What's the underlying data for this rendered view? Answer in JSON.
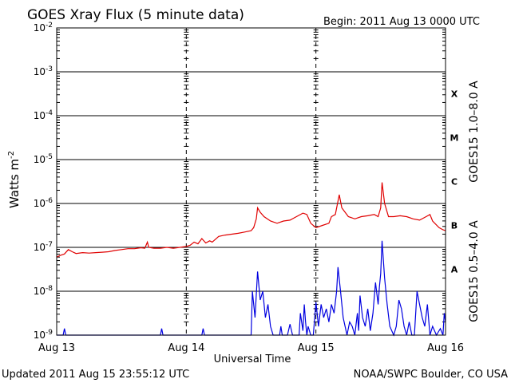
{
  "chart_data": {
    "type": "line",
    "title": "GOES Xray Flux (5 minute data)",
    "begin": "Begin:  2011 Aug 13 0000 UTC",
    "ylabel": "Watts m",
    "ylabel_sup": "-2",
    "xlabel": "Universal Time",
    "yscale": "log",
    "ylim": [
      1e-09,
      0.01
    ],
    "xlim": [
      0,
      3
    ],
    "grid": true,
    "x_ticks": [
      {
        "x": 0,
        "label": "Aug 13"
      },
      {
        "x": 1,
        "label": "Aug 14"
      },
      {
        "x": 2,
        "label": "Aug 15"
      },
      {
        "x": 3,
        "label": "Aug 16"
      }
    ],
    "y_ticks": [
      {
        "exp": -2,
        "base": "10",
        "sup": "-2"
      },
      {
        "exp": -3,
        "base": "10",
        "sup": "-3"
      },
      {
        "exp": -4,
        "base": "10",
        "sup": "-4"
      },
      {
        "exp": -5,
        "base": "10",
        "sup": "-5"
      },
      {
        "exp": -6,
        "base": "10",
        "sup": "-6"
      },
      {
        "exp": -7,
        "base": "10",
        "sup": "-7"
      },
      {
        "exp": -8,
        "base": "10",
        "sup": "-8"
      },
      {
        "exp": -9,
        "base": "10",
        "sup": "-9"
      }
    ],
    "flare_classes": [
      {
        "label": "X",
        "exp": -3.5
      },
      {
        "label": "M",
        "exp": -4.5
      },
      {
        "label": "C",
        "exp": -5.5
      },
      {
        "label": "B",
        "exp": -6.5
      },
      {
        "label": "A",
        "exp": -7.5
      }
    ],
    "series": [
      {
        "name": "GOES15 1.0–8.0 A",
        "color": "#e00000",
        "points": [
          [
            0.0,
            -7.22
          ],
          [
            0.03,
            -7.18
          ],
          [
            0.06,
            -7.15
          ],
          [
            0.09,
            -7.05
          ],
          [
            0.12,
            -7.1
          ],
          [
            0.15,
            -7.14
          ],
          [
            0.2,
            -7.12
          ],
          [
            0.25,
            -7.13
          ],
          [
            0.3,
            -7.12
          ],
          [
            0.35,
            -7.11
          ],
          [
            0.4,
            -7.1
          ],
          [
            0.45,
            -7.07
          ],
          [
            0.5,
            -7.05
          ],
          [
            0.55,
            -7.03
          ],
          [
            0.6,
            -7.03
          ],
          [
            0.65,
            -7.01
          ],
          [
            0.68,
            -7.02
          ],
          [
            0.7,
            -6.88
          ],
          [
            0.71,
            -7.0
          ],
          [
            0.75,
            -7.02
          ],
          [
            0.8,
            -7.02
          ],
          [
            0.85,
            -7.0
          ],
          [
            0.9,
            -7.02
          ],
          [
            0.95,
            -7.0
          ],
          [
            1.0,
            -6.98
          ],
          [
            1.03,
            -6.95
          ],
          [
            1.06,
            -6.88
          ],
          [
            1.09,
            -6.92
          ],
          [
            1.12,
            -6.8
          ],
          [
            1.15,
            -6.9
          ],
          [
            1.18,
            -6.85
          ],
          [
            1.2,
            -6.88
          ],
          [
            1.25,
            -6.75
          ],
          [
            1.3,
            -6.72
          ],
          [
            1.35,
            -6.7
          ],
          [
            1.4,
            -6.68
          ],
          [
            1.45,
            -6.65
          ],
          [
            1.5,
            -6.62
          ],
          [
            1.52,
            -6.55
          ],
          [
            1.54,
            -6.35
          ],
          [
            1.55,
            -6.1
          ],
          [
            1.57,
            -6.2
          ],
          [
            1.6,
            -6.3
          ],
          [
            1.65,
            -6.4
          ],
          [
            1.7,
            -6.45
          ],
          [
            1.75,
            -6.4
          ],
          [
            1.8,
            -6.38
          ],
          [
            1.85,
            -6.3
          ],
          [
            1.9,
            -6.22
          ],
          [
            1.93,
            -6.25
          ],
          [
            1.96,
            -6.45
          ],
          [
            2.0,
            -6.55
          ],
          [
            2.05,
            -6.5
          ],
          [
            2.1,
            -6.45
          ],
          [
            2.12,
            -6.3
          ],
          [
            2.15,
            -6.25
          ],
          [
            2.18,
            -5.8
          ],
          [
            2.2,
            -6.1
          ],
          [
            2.25,
            -6.3
          ],
          [
            2.3,
            -6.35
          ],
          [
            2.35,
            -6.3
          ],
          [
            2.4,
            -6.28
          ],
          [
            2.45,
            -6.25
          ],
          [
            2.48,
            -6.3
          ],
          [
            2.5,
            -6.1
          ],
          [
            2.51,
            -5.52
          ],
          [
            2.53,
            -6.0
          ],
          [
            2.56,
            -6.3
          ],
          [
            2.6,
            -6.3
          ],
          [
            2.65,
            -6.28
          ],
          [
            2.7,
            -6.3
          ],
          [
            2.75,
            -6.35
          ],
          [
            2.8,
            -6.38
          ],
          [
            2.85,
            -6.3
          ],
          [
            2.88,
            -6.25
          ],
          [
            2.9,
            -6.4
          ],
          [
            2.95,
            -6.55
          ],
          [
            2.98,
            -6.6
          ],
          [
            3.0,
            -6.62
          ]
        ]
      },
      {
        "name": "GOES15 0.5–4.0 A",
        "color": "#0000e0",
        "points": [
          [
            0.0,
            -9.0
          ],
          [
            0.05,
            -9.0
          ],
          [
            0.06,
            -8.85
          ],
          [
            0.07,
            -9.0
          ],
          [
            0.8,
            -9.0
          ],
          [
            0.81,
            -8.85
          ],
          [
            0.82,
            -9.0
          ],
          [
            1.12,
            -9.0
          ],
          [
            1.13,
            -8.85
          ],
          [
            1.14,
            -9.0
          ],
          [
            1.5,
            -9.0
          ],
          [
            1.51,
            -8.0
          ],
          [
            1.53,
            -8.6
          ],
          [
            1.55,
            -7.55
          ],
          [
            1.57,
            -8.2
          ],
          [
            1.59,
            -8.0
          ],
          [
            1.61,
            -8.6
          ],
          [
            1.63,
            -8.3
          ],
          [
            1.65,
            -8.8
          ],
          [
            1.67,
            -9.0
          ],
          [
            1.72,
            -9.0
          ],
          [
            1.73,
            -8.8
          ],
          [
            1.74,
            -9.0
          ],
          [
            1.78,
            -9.0
          ],
          [
            1.8,
            -8.75
          ],
          [
            1.82,
            -9.0
          ],
          [
            1.87,
            -9.0
          ],
          [
            1.88,
            -8.5
          ],
          [
            1.9,
            -8.9
          ],
          [
            1.91,
            -8.3
          ],
          [
            1.92,
            -8.7
          ],
          [
            1.93,
            -9.0
          ],
          [
            1.94,
            -8.8
          ],
          [
            1.96,
            -9.0
          ],
          [
            1.98,
            -9.0
          ],
          [
            2.0,
            -8.25
          ],
          [
            2.02,
            -8.8
          ],
          [
            2.04,
            -8.3
          ],
          [
            2.06,
            -8.6
          ],
          [
            2.08,
            -8.4
          ],
          [
            2.1,
            -8.7
          ],
          [
            2.12,
            -8.3
          ],
          [
            2.14,
            -8.5
          ],
          [
            2.16,
            -8.0
          ],
          [
            2.17,
            -7.45
          ],
          [
            2.19,
            -8.0
          ],
          [
            2.21,
            -8.6
          ],
          [
            2.24,
            -9.0
          ],
          [
            2.26,
            -8.7
          ],
          [
            2.28,
            -8.8
          ],
          [
            2.3,
            -9.0
          ],
          [
            2.32,
            -8.5
          ],
          [
            2.33,
            -8.9
          ],
          [
            2.34,
            -8.1
          ],
          [
            2.36,
            -8.6
          ],
          [
            2.38,
            -8.8
          ],
          [
            2.4,
            -8.4
          ],
          [
            2.42,
            -8.9
          ],
          [
            2.44,
            -8.5
          ],
          [
            2.46,
            -7.8
          ],
          [
            2.48,
            -8.3
          ],
          [
            2.49,
            -7.9
          ],
          [
            2.5,
            -7.6
          ],
          [
            2.51,
            -6.85
          ],
          [
            2.53,
            -7.7
          ],
          [
            2.55,
            -8.3
          ],
          [
            2.57,
            -8.8
          ],
          [
            2.6,
            -9.0
          ],
          [
            2.62,
            -8.8
          ],
          [
            2.64,
            -8.2
          ],
          [
            2.66,
            -8.4
          ],
          [
            2.68,
            -8.8
          ],
          [
            2.7,
            -9.0
          ],
          [
            2.72,
            -8.7
          ],
          [
            2.74,
            -9.0
          ],
          [
            2.76,
            -9.0
          ],
          [
            2.78,
            -8.0
          ],
          [
            2.8,
            -8.3
          ],
          [
            2.82,
            -8.6
          ],
          [
            2.84,
            -8.8
          ],
          [
            2.86,
            -8.3
          ],
          [
            2.88,
            -9.0
          ],
          [
            2.9,
            -8.8
          ],
          [
            2.93,
            -9.0
          ],
          [
            2.96,
            -8.85
          ],
          [
            2.98,
            -9.0
          ],
          [
            2.99,
            -8.5
          ],
          [
            3.0,
            -8.7
          ]
        ]
      }
    ]
  },
  "footer": {
    "updated": "Updated 2011 Aug 15 23:55:12 UTC",
    "credit": "NOAA/SWPC Boulder, CO USA"
  }
}
